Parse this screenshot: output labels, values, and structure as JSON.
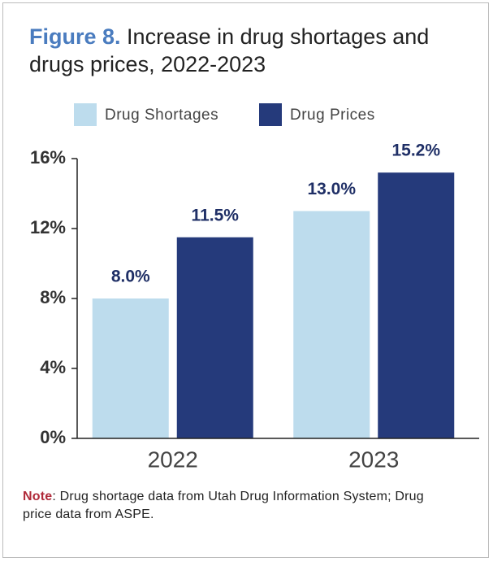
{
  "chart_data": {
    "type": "bar",
    "title_label": "Figure 8.",
    "title": "Increase in drug shortages and drugs prices, 2022-2023",
    "categories": [
      "2022",
      "2023"
    ],
    "series": [
      {
        "name": "Drug Shortages",
        "color": "#bddced",
        "values": [
          8.0,
          13.0
        ],
        "value_labels": [
          "8.0%",
          "13.0%"
        ]
      },
      {
        "name": "Drug Prices",
        "color": "#253a7b",
        "values": [
          11.5,
          15.2
        ],
        "value_labels": [
          "11.5%",
          "15.2%"
        ]
      }
    ],
    "ylim": [
      0,
      16
    ],
    "yticks": [
      {
        "value": 0,
        "label": "0%"
      },
      {
        "value": 4,
        "label": "4%"
      },
      {
        "value": 8,
        "label": "8%"
      },
      {
        "value": 12,
        "label": "12%"
      },
      {
        "value": 16,
        "label": "16%"
      }
    ],
    "legend": "top",
    "note_label": "Note",
    "note": ": Drug shortage data from Utah Drug Information System; Drug price data from ASPE."
  }
}
